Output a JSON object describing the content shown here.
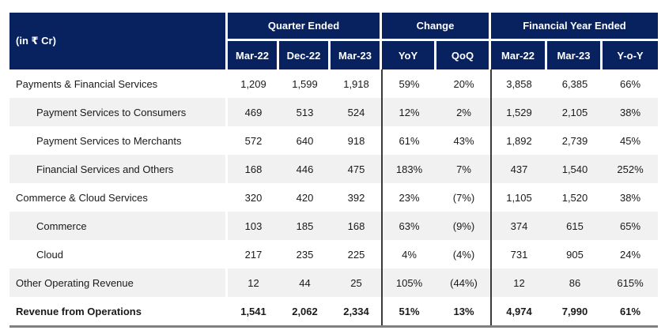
{
  "table": {
    "unit_label": "(in ₹ Cr)",
    "header_groups": [
      {
        "label": "Quarter Ended",
        "columns": [
          "Mar-22",
          "Dec-22",
          "Mar-23"
        ]
      },
      {
        "label": "Change",
        "columns": [
          "YoY",
          "QoQ"
        ]
      },
      {
        "label": "Financial Year Ended",
        "columns": [
          "Mar-22",
          "Mar-23",
          "Y-o-Y"
        ]
      }
    ],
    "rows": [
      {
        "label": "Payments & Financial Services",
        "indent": false,
        "bold": false,
        "values": [
          "1,209",
          "1,599",
          "1,918",
          "59%",
          "20%",
          "3,858",
          "6,385",
          "66%"
        ]
      },
      {
        "label": "Payment Services to Consumers",
        "indent": true,
        "bold": false,
        "values": [
          "469",
          "513",
          "524",
          "12%",
          "2%",
          "1,529",
          "2,105",
          "38%"
        ]
      },
      {
        "label": "Payment Services to Merchants",
        "indent": true,
        "bold": false,
        "values": [
          "572",
          "640",
          "918",
          "61%",
          "43%",
          "1,892",
          "2,739",
          "45%"
        ]
      },
      {
        "label": "Financial Services and Others",
        "indent": true,
        "bold": false,
        "values": [
          "168",
          "446",
          "475",
          "183%",
          "7%",
          "437",
          "1,540",
          "252%"
        ]
      },
      {
        "label": "Commerce & Cloud Services",
        "indent": false,
        "bold": false,
        "values": [
          "320",
          "420",
          "392",
          "23%",
          "(7%)",
          "1,105",
          "1,520",
          "38%"
        ]
      },
      {
        "label": "Commerce",
        "indent": true,
        "bold": false,
        "values": [
          "103",
          "185",
          "168",
          "63%",
          "(9%)",
          "374",
          "615",
          "65%"
        ]
      },
      {
        "label": "Cloud",
        "indent": true,
        "bold": false,
        "values": [
          "217",
          "235",
          "225",
          "4%",
          "(4%)",
          "731",
          "905",
          "24%"
        ]
      },
      {
        "label": "Other Operating Revenue",
        "indent": false,
        "bold": false,
        "values": [
          "12",
          "44",
          "25",
          "105%",
          "(44%)",
          "12",
          "86",
          "615%"
        ]
      },
      {
        "label": "Revenue from Operations",
        "indent": false,
        "bold": true,
        "values": [
          "1,541",
          "2,062",
          "2,334",
          "51%",
          "13%",
          "4,974",
          "7,990",
          "61%"
        ]
      }
    ],
    "colors": {
      "header_bg": "#08225f",
      "header_text": "#ffffff",
      "stripe_bg": "#f1f1f1",
      "group_divider": "#3a3a3a",
      "bottom_rule": "#808080",
      "body_text": "#1a1a1a"
    }
  }
}
